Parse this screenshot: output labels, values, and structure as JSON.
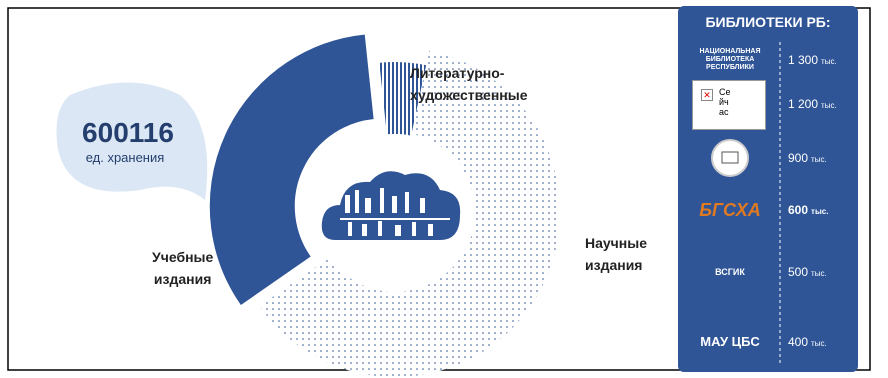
{
  "chart_data": {
    "type": "pie",
    "categories": [
      "Литературно-\nхудожественные",
      "Научные\nиздания",
      "Учебные\nиздания"
    ],
    "values": [
      5,
      62,
      33
    ],
    "colors": [
      "#2f5597",
      "#2f5597",
      "#2f5597"
    ]
  },
  "callout": {
    "value": "600116",
    "label": "ед. хранения"
  },
  "libraries": {
    "title": "БИБЛИОТЕКИ РБ:",
    "items": [
      {
        "logo": "НАЦИОНАЛЬНАЯ\nБИБЛИОТЕКА\nРЕСПУБЛИКИ",
        "amount": "1 300",
        "unit": "тыс."
      },
      {
        "logo": "Се\nйч\nас",
        "amount": "1 200",
        "unit": "тыс."
      },
      {
        "logo": "",
        "amount": "900",
        "unit": "тыс."
      },
      {
        "logo": "БГСХА",
        "amount": "600",
        "unit": "тыс."
      },
      {
        "logo": "ВСГИК",
        "amount": "500",
        "unit": "тыс."
      },
      {
        "logo": "МАУ ЦБС",
        "amount": "400",
        "unit": "тыс."
      }
    ]
  }
}
